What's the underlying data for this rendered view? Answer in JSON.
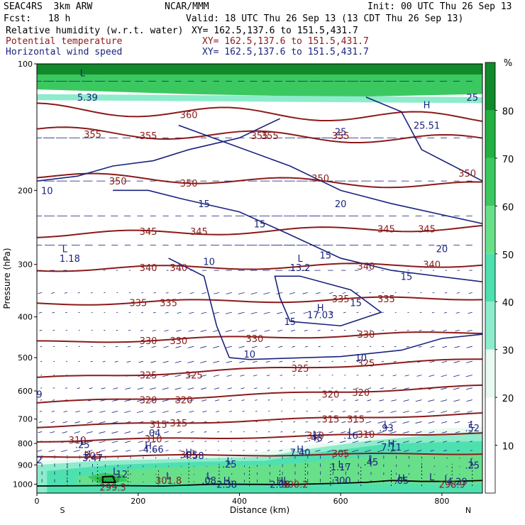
{
  "header": {
    "model": "SEAC4RS  3km ARW",
    "org": "NCAR/MMM",
    "init": "Init: 00 UTC Thu 26 Sep 13",
    "fcst_label": "Fcst:",
    "fcst_value": "18 h",
    "valid": "Valid: 18 UTC Thu 26 Sep 13 (13 CDT Thu 26 Sep 13)",
    "fields": [
      {
        "name": "Relative humidity (w.r.t. water)",
        "xy": "XY= 162.5,137.6 to 151.5,431.7",
        "color": "#000000"
      },
      {
        "name": "Potential temperature",
        "xy": "XY= 162.5,137.6 to 151.5,431.7",
        "color": "#8b1a1a"
      },
      {
        "name": "Horizontal wind speed",
        "xy": "XY= 162.5,137.6 to 151.5,431.7",
        "color": "#1a237e"
      }
    ]
  },
  "chart_data": {
    "type": "cross-section",
    "xlabel": "Distance (km)",
    "ylabel": "Pressure (hPa)",
    "xlim": [
      0,
      880
    ],
    "ylim": [
      1050,
      100
    ],
    "y_scale": "log",
    "x_ticks": [
      0,
      200,
      400,
      600,
      800
    ],
    "y_ticks": [
      100,
      200,
      300,
      400,
      500,
      600,
      700,
      800,
      900,
      1000
    ],
    "x_endpoint_labels": {
      "left": "S",
      "right": "N"
    },
    "colorbar": {
      "unit": "%",
      "levels": [
        10,
        20,
        30,
        40,
        50,
        60,
        70,
        80
      ],
      "colors": [
        "#ffffff",
        "#ffffff",
        "#e8faf2",
        "#8deccb",
        "#4fe0b0",
        "#68e08a",
        "#3cc860",
        "#24b040",
        "#108a2a"
      ]
    },
    "theta_lines": [
      {
        "value": 305,
        "p_left": 860,
        "p_right": 845
      },
      {
        "value": 310,
        "p_left": 790,
        "p_right": 755
      },
      {
        "value": 315,
        "p_left": 730,
        "p_right": 680
      },
      {
        "value": 320,
        "p_left": 640,
        "p_right": 585
      },
      {
        "value": 325,
        "p_left": 560,
        "p_right": 505
      },
      {
        "value": 330,
        "p_left": 460,
        "p_right": 435
      },
      {
        "value": 335,
        "p_left": 372,
        "p_right": 360
      },
      {
        "value": 340,
        "p_left": 308,
        "p_right": 300
      },
      {
        "value": 345,
        "p_left": 255,
        "p_right": 245
      },
      {
        "value": 350,
        "p_left": 185,
        "p_right": 195
      },
      {
        "value": 355,
        "p_left": 145,
        "p_right": 152
      },
      {
        "value": 360,
        "p_left": 128,
        "p_right": 135
      }
    ],
    "theta_labels": [
      {
        "text": "305",
        "x": 110,
        "p": 855
      },
      {
        "text": "305",
        "x": 300,
        "p": 850
      },
      {
        "text": "305",
        "x": 600,
        "p": 845
      },
      {
        "text": "310",
        "x": 80,
        "p": 785
      },
      {
        "text": "310",
        "x": 230,
        "p": 780
      },
      {
        "text": "310",
        "x": 550,
        "p": 765
      },
      {
        "text": "310",
        "x": 650,
        "p": 760
      },
      {
        "text": "315",
        "x": 240,
        "p": 720
      },
      {
        "text": "315",
        "x": 280,
        "p": 715
      },
      {
        "text": "315",
        "x": 580,
        "p": 700
      },
      {
        "text": "315",
        "x": 630,
        "p": 700
      },
      {
        "text": "320",
        "x": 220,
        "p": 630
      },
      {
        "text": "320",
        "x": 290,
        "p": 630
      },
      {
        "text": "320",
        "x": 580,
        "p": 610
      },
      {
        "text": "320",
        "x": 640,
        "p": 605
      },
      {
        "text": "325",
        "x": 220,
        "p": 550
      },
      {
        "text": "325",
        "x": 310,
        "p": 550
      },
      {
        "text": "325",
        "x": 520,
        "p": 530
      },
      {
        "text": "325",
        "x": 650,
        "p": 515
      },
      {
        "text": "330",
        "x": 220,
        "p": 455
      },
      {
        "text": "330",
        "x": 280,
        "p": 455
      },
      {
        "text": "330",
        "x": 430,
        "p": 450
      },
      {
        "text": "330",
        "x": 650,
        "p": 440
      },
      {
        "text": "335",
        "x": 200,
        "p": 370
      },
      {
        "text": "335",
        "x": 260,
        "p": 370
      },
      {
        "text": "335",
        "x": 600,
        "p": 362
      },
      {
        "text": "335",
        "x": 690,
        "p": 362
      },
      {
        "text": "340",
        "x": 220,
        "p": 305
      },
      {
        "text": "340",
        "x": 280,
        "p": 305
      },
      {
        "text": "340",
        "x": 650,
        "p": 303
      },
      {
        "text": "340",
        "x": 780,
        "p": 300
      },
      {
        "text": "345",
        "x": 220,
        "p": 250
      },
      {
        "text": "345",
        "x": 320,
        "p": 250
      },
      {
        "text": "345",
        "x": 690,
        "p": 247
      },
      {
        "text": "345",
        "x": 770,
        "p": 247
      },
      {
        "text": "350",
        "x": 160,
        "p": 190
      },
      {
        "text": "350",
        "x": 300,
        "p": 192
      },
      {
        "text": "350",
        "x": 560,
        "p": 187
      },
      {
        "text": "350",
        "x": 850,
        "p": 182
      },
      {
        "text": "355",
        "x": 110,
        "p": 147
      },
      {
        "text": "355",
        "x": 220,
        "p": 148
      },
      {
        "text": "355",
        "x": 460,
        "p": 148
      },
      {
        "text": "355",
        "x": 600,
        "p": 148
      },
      {
        "text": "360",
        "x": 300,
        "p": 132
      },
      {
        "text": "355",
        "x": 440,
        "p": 148
      }
    ],
    "wind_contours": [
      {
        "value": 10,
        "points": [
          [
            380,
            500
          ],
          [
            420,
            505
          ],
          [
            600,
            497
          ],
          [
            720,
            480
          ],
          [
            800,
            450
          ],
          [
            880,
            440
          ]
        ]
      },
      {
        "value": 10,
        "points": [
          [
            260,
            290
          ],
          [
            330,
            320
          ],
          [
            355,
            420
          ],
          [
            380,
            500
          ]
        ]
      },
      {
        "value": 10,
        "points": [
          [
            0,
            190
          ],
          [
            80,
            185
          ],
          [
            150,
            175
          ],
          [
            230,
            170
          ],
          [
            300,
            160
          ],
          [
            400,
            150
          ],
          [
            480,
            135
          ]
        ]
      },
      {
        "value": 15,
        "points": [
          [
            500,
            410
          ],
          [
            480,
            360
          ],
          [
            470,
            320
          ],
          [
            520,
            320
          ],
          [
            620,
            345
          ],
          [
            680,
            390
          ],
          [
            600,
            420
          ],
          [
            500,
            410
          ]
        ]
      },
      {
        "value": 15,
        "points": [
          [
            150,
            200
          ],
          [
            220,
            200
          ],
          [
            290,
            210
          ],
          [
            400,
            225
          ],
          [
            500,
            255
          ],
          [
            600,
            290
          ],
          [
            700,
            310
          ],
          [
            880,
            330
          ]
        ]
      },
      {
        "value": 20,
        "points": [
          [
            280,
            140
          ],
          [
            380,
            155
          ],
          [
            500,
            175
          ],
          [
            600,
            200
          ],
          [
            700,
            215
          ],
          [
            880,
            240
          ]
        ]
      },
      {
        "value": 20,
        "points": [
          [
            650,
            120
          ],
          [
            720,
            130
          ],
          [
            760,
            160
          ],
          [
            880,
            190
          ]
        ]
      }
    ],
    "wind_labels": [
      {
        "text": "10",
        "x": 20,
        "p": 200
      },
      {
        "text": "10",
        "x": 340,
        "p": 295
      },
      {
        "text": "10",
        "x": 420,
        "p": 490
      },
      {
        "text": "10",
        "x": 640,
        "p": 500
      },
      {
        "text": "15",
        "x": 330,
        "p": 215
      },
      {
        "text": "15",
        "x": 440,
        "p": 240
      },
      {
        "text": "15",
        "x": 570,
        "p": 285
      },
      {
        "text": "15",
        "x": 630,
        "p": 370
      },
      {
        "text": "15",
        "x": 500,
        "p": 410
      },
      {
        "text": "15",
        "x": 730,
        "p": 320
      },
      {
        "text": "20",
        "x": 600,
        "p": 215
      },
      {
        "text": "20",
        "x": 800,
        "p": 275
      },
      {
        "text": "25",
        "x": 600,
        "p": 145
      },
      {
        "text": "25",
        "x": 860,
        "p": 120
      }
    ],
    "rh_annotations": [
      {
        "text": "L",
        "x": 55,
        "p": 275
      },
      {
        "text": "1.18",
        "x": 65,
        "p": 290
      },
      {
        "text": "L",
        "x": 690,
        "p": 720
      },
      {
        "text": ".93",
        "x": 690,
        "p": 735
      },
      {
        "text": "L",
        "x": 860,
        "p": 720
      },
      {
        "text": ".52",
        "x": 860,
        "p": 735
      },
      {
        "text": "L",
        "x": 620,
        "p": 750
      },
      {
        "text": ".16",
        "x": 620,
        "p": 765
      },
      {
        "text": "L",
        "x": 550,
        "p": 760
      },
      {
        "text": ".48",
        "x": 550,
        "p": 775
      },
      {
        "text": ".04",
        "x": 230,
        "p": 755
      },
      {
        "text": "L",
        "x": 90,
        "p": 790
      },
      {
        "text": ".25",
        "x": 90,
        "p": 805
      },
      {
        "text": "H",
        "x": 220,
        "p": 810
      },
      {
        "text": "4.66",
        "x": 230,
        "p": 825
      },
      {
        "text": "H",
        "x": 300,
        "p": 840
      },
      {
        "text": "4.58",
        "x": 310,
        "p": 855
      },
      {
        "text": "H",
        "x": 100,
        "p": 850
      },
      {
        "text": "3.47",
        "x": 110,
        "p": 865
      },
      {
        "text": "H",
        "x": 520,
        "p": 825
      },
      {
        "text": "7.40",
        "x": 520,
        "p": 840
      },
      {
        "text": "H",
        "x": 700,
        "p": 800
      },
      {
        "text": "7.11",
        "x": 700,
        "p": 815
      },
      {
        "text": "L",
        "x": 660,
        "p": 870
      },
      {
        "text": ".45",
        "x": 660,
        "p": 885
      },
      {
        "text": "L",
        "x": 860,
        "p": 885
      },
      {
        "text": ".25",
        "x": 860,
        "p": 900
      },
      {
        "text": "2",
        "x": 5,
        "p": 875
      },
      {
        "text": "L",
        "x": 380,
        "p": 880
      },
      {
        "text": ".25",
        "x": 380,
        "p": 895
      },
      {
        "text": "L",
        "x": 600,
        "p": 895
      },
      {
        "text": "1.17",
        "x": 600,
        "p": 910
      },
      {
        "text": "L",
        "x": 155,
        "p": 930
      },
      {
        "text": ".12",
        "x": 165,
        "p": 945
      },
      {
        "text": "L",
        "x": 260,
        "p": 955
      },
      {
        "text": "301.8",
        "x": 260,
        "p": 980
      },
      {
        "text": "L",
        "x": 340,
        "p": 955
      },
      {
        "text": ".08",
        "x": 340,
        "p": 980
      },
      {
        "text": "H",
        "x": 375,
        "p": 980
      },
      {
        "text": "2.38",
        "x": 375,
        "p": 1000
      },
      {
        "text": "HL",
        "x": 485,
        "p": 980
      },
      {
        "text": "2.98",
        "x": 480,
        "p": 1000
      },
      {
        "text": "300.2",
        "x": 510,
        "p": 1000
      },
      {
        "text": ".300",
        "x": 600,
        "p": 980
      },
      {
        "text": "H",
        "x": 720,
        "p": 965
      },
      {
        "text": ".05",
        "x": 720,
        "p": 980
      },
      {
        "text": "L",
        "x": 810,
        "p": 970
      },
      {
        "text": "4.29",
        "x": 830,
        "p": 985
      },
      {
        "text": "298.9",
        "x": 820,
        "p": 1000
      },
      {
        "text": "299.3",
        "x": 150,
        "p": 1015
      },
      {
        "text": "L",
        "x": 90,
        "p": 105
      },
      {
        "text": "5.39",
        "x": 100,
        "p": 120
      },
      {
        "text": "L",
        "x": 520,
        "p": 290
      },
      {
        "text": "13.2",
        "x": 520,
        "p": 305
      },
      {
        "text": "H",
        "x": 560,
        "p": 380
      },
      {
        "text": "17.03",
        "x": 560,
        "p": 395
      },
      {
        "text": "H",
        "x": 770,
        "p": 125
      },
      {
        "text": "25.51",
        "x": 770,
        "p": 140
      },
      {
        "text": "L",
        "x": 780,
        "p": 960
      },
      {
        "text": "9",
        "x": 5,
        "p": 610
      }
    ]
  }
}
